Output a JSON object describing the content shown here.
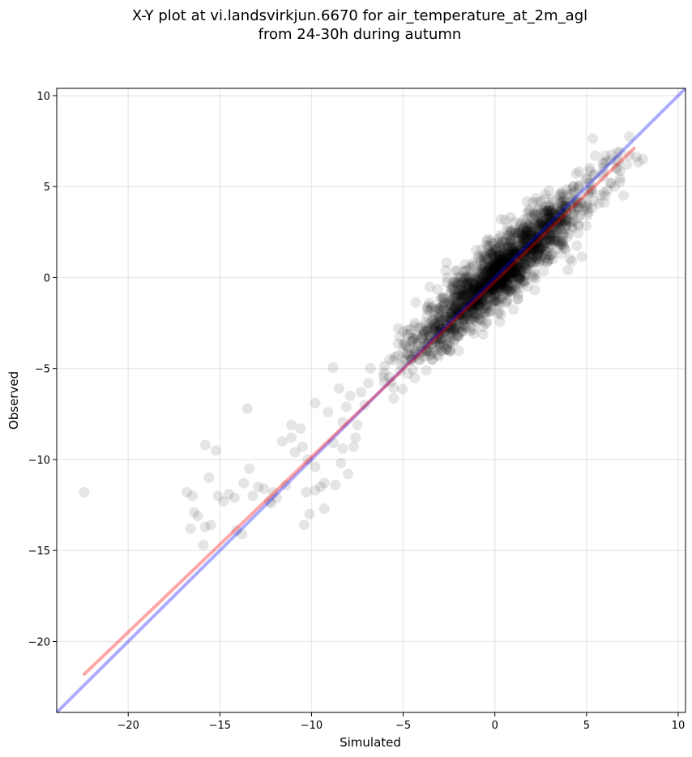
{
  "chart_data": {
    "type": "scatter",
    "title_line1": "X-Y plot at vi.landsvirkjun.6670 for air_temperature_at_2m_agl",
    "title_line2": "from 24-30h during autumn",
    "xlabel": "Simulated",
    "ylabel": "Observed",
    "xlim": [
      -23.9,
      10.4
    ],
    "ylim": [
      -23.9,
      10.4
    ],
    "x_ticks": [
      -20,
      -15,
      -10,
      -5,
      0,
      5,
      10
    ],
    "x_tick_labels": [
      "−20",
      "−15",
      "−10",
      "−5",
      "0",
      "5",
      "10"
    ],
    "y_ticks": [
      -20,
      -15,
      -10,
      -5,
      0,
      5,
      10
    ],
    "y_tick_labels": [
      "−20",
      "−15",
      "−10",
      "−5",
      "0",
      "5",
      "10"
    ],
    "grid": true,
    "point_color": "#000000",
    "point_alpha": 0.1,
    "outlier_points": [
      [
        -22.4,
        -11.8
      ],
      [
        -16.8,
        -11.8
      ],
      [
        -16.5,
        -12
      ],
      [
        -16.2,
        -13.1
      ],
      [
        -16.6,
        -13.8
      ],
      [
        -15.8,
        -13.7
      ],
      [
        -15.9,
        -14.7
      ],
      [
        -15.5,
        -13.6
      ],
      [
        -15.1,
        -12
      ],
      [
        -15.2,
        -9.5
      ],
      [
        -15.6,
        -11
      ],
      [
        -14.8,
        -12.3
      ],
      [
        -14.5,
        -11.9
      ],
      [
        -14.2,
        -12.1
      ],
      [
        -14.1,
        -13.9
      ],
      [
        -13.8,
        -14.1
      ],
      [
        -13.7,
        -11.3
      ],
      [
        -13.4,
        -10.5
      ],
      [
        -13.2,
        -12
      ],
      [
        -12.9,
        -11.5
      ],
      [
        -12.6,
        -11.6
      ],
      [
        -12.2,
        -12.4
      ],
      [
        -12.1,
        -11.8
      ],
      [
        -11.9,
        -12.1
      ],
      [
        -11.6,
        -9
      ],
      [
        -11.4,
        -11.4
      ],
      [
        -11.1,
        -8.1
      ],
      [
        -11.1,
        -8.8
      ],
      [
        -10.9,
        -9.6
      ],
      [
        -10.6,
        -8.3
      ],
      [
        -10.5,
        -9.3
      ],
      [
        -10.2,
        -10
      ],
      [
        -10.3,
        -11.8
      ],
      [
        -10.4,
        -13.6
      ],
      [
        -10.1,
        -13
      ],
      [
        -9.8,
        -10.4
      ],
      [
        -9.8,
        -6.9
      ],
      [
        -9.5,
        -11.5
      ],
      [
        -9.3,
        -12.7
      ],
      [
        -9.3,
        -11.3
      ],
      [
        -9.1,
        -7.4
      ],
      [
        -8.8,
        -9.1
      ],
      [
        -8.7,
        -11.4
      ],
      [
        -8.5,
        -6.1
      ],
      [
        -8.3,
        -9.4
      ],
      [
        -8.1,
        -7.1
      ],
      [
        -8,
        -10.8
      ],
      [
        -7.9,
        -6.5
      ],
      [
        -7.7,
        -9.3
      ],
      [
        -7.5,
        -8.1
      ],
      [
        -7.3,
        -6.3
      ],
      [
        -7.1,
        -7
      ],
      [
        -6.9,
        -5.8
      ],
      [
        -15.8,
        -9.2
      ],
      [
        -13.5,
        -7.2
      ],
      [
        -12.3,
        -12.3
      ],
      [
        -16.4,
        -12.9
      ],
      [
        -9.8,
        -11.7
      ],
      [
        -8.4,
        -10.2
      ],
      [
        -7.6,
        -8.8
      ]
    ],
    "cluster_seed": 12345,
    "cluster_count": 1900,
    "regression_line": {
      "x": [
        -22.4,
        7.6
      ],
      "y": [
        -21.8,
        7.1
      ],
      "color": "#ff0000",
      "alpha": 0.35
    },
    "identity_line": {
      "x": [
        -23.9,
        10.4
      ],
      "y": [
        -23.9,
        10.4
      ],
      "color": "#0000ff",
      "alpha": 0.33
    }
  }
}
